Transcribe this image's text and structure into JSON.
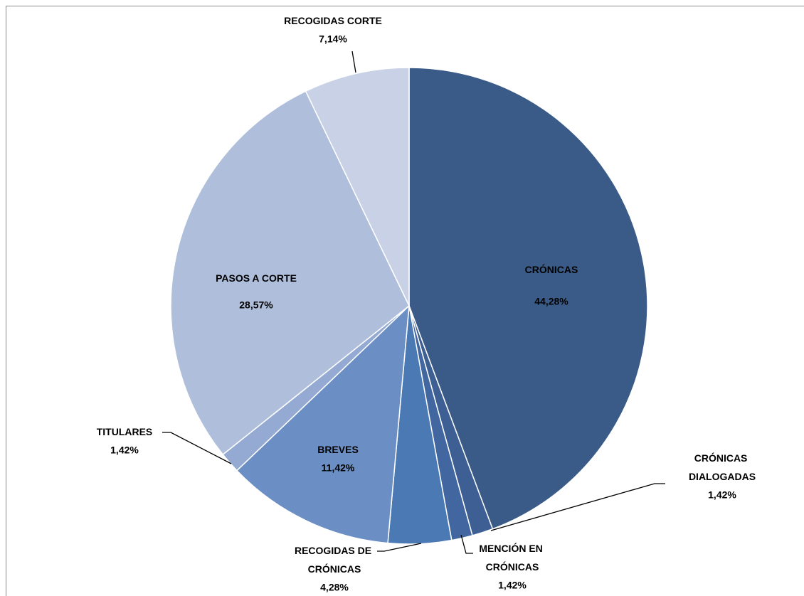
{
  "chart_data": {
    "type": "pie",
    "categories": [
      "CRÓNICAS",
      "CRÓNICAS DIALOGADAS",
      "MENCIÓN EN CRÓNICAS",
      "RECOGIDAS DE CRÓNICAS",
      "BREVES",
      "TITULARES",
      "PASOS A CORTE",
      "RECOGIDAS CORTE"
    ],
    "values": [
      44.28,
      1.42,
      1.42,
      4.28,
      11.42,
      1.42,
      28.57,
      7.14
    ],
    "value_labels": [
      "44,28%",
      "1,42%",
      "1,42%",
      "4,28%",
      "11,42%",
      "1,42%",
      "28,57%",
      "7,14%"
    ],
    "colors": [
      "#3a5a87",
      "#3d5f93",
      "#4166a0",
      "#4a79b4",
      "#6b8fc4",
      "#94aad3",
      "#afbfdb",
      "#c8d1e5"
    ]
  }
}
